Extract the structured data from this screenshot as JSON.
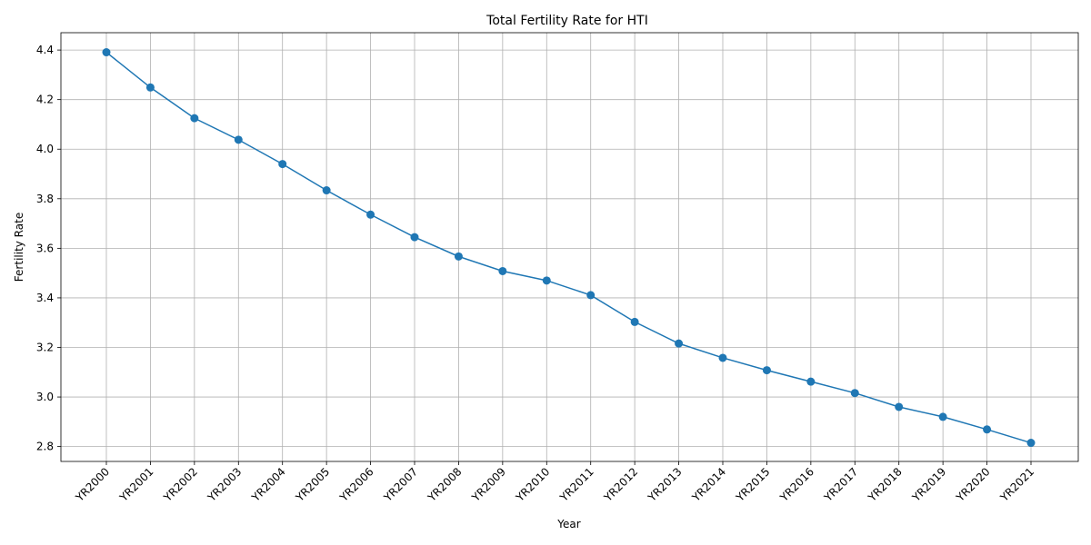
{
  "chart_data": {
    "type": "line",
    "title": "Total Fertility Rate for HTI",
    "xlabel": "Year",
    "ylabel": "Fertility Rate",
    "categories": [
      "YR2000",
      "YR2001",
      "YR2002",
      "YR2003",
      "YR2004",
      "YR2005",
      "YR2006",
      "YR2007",
      "YR2008",
      "YR2009",
      "YR2010",
      "YR2011",
      "YR2012",
      "YR2013",
      "YR2014",
      "YR2015",
      "YR2016",
      "YR2017",
      "YR2018",
      "YR2019",
      "YR2020",
      "YR2021"
    ],
    "series": [
      {
        "values": [
          4.391,
          4.249,
          4.125,
          4.038,
          3.94,
          3.834,
          3.736,
          3.645,
          3.567,
          3.508,
          3.47,
          3.411,
          3.303,
          3.216,
          3.158,
          3.108,
          3.062,
          3.016,
          2.96,
          2.92,
          2.869,
          2.815
        ],
        "color": "#1f77b4",
        "marker": "circle"
      }
    ],
    "ylim": [
      2.74,
      4.47
    ],
    "yticks": [
      2.8,
      3.0,
      3.2,
      3.4,
      3.6,
      3.8,
      4.0,
      4.2,
      4.4
    ],
    "ytick_labels": [
      "2.8",
      "3.0",
      "3.2",
      "3.4",
      "3.6",
      "3.8",
      "4.0",
      "4.2",
      "4.4"
    ],
    "grid": true,
    "xtick_rotation": 45
  }
}
